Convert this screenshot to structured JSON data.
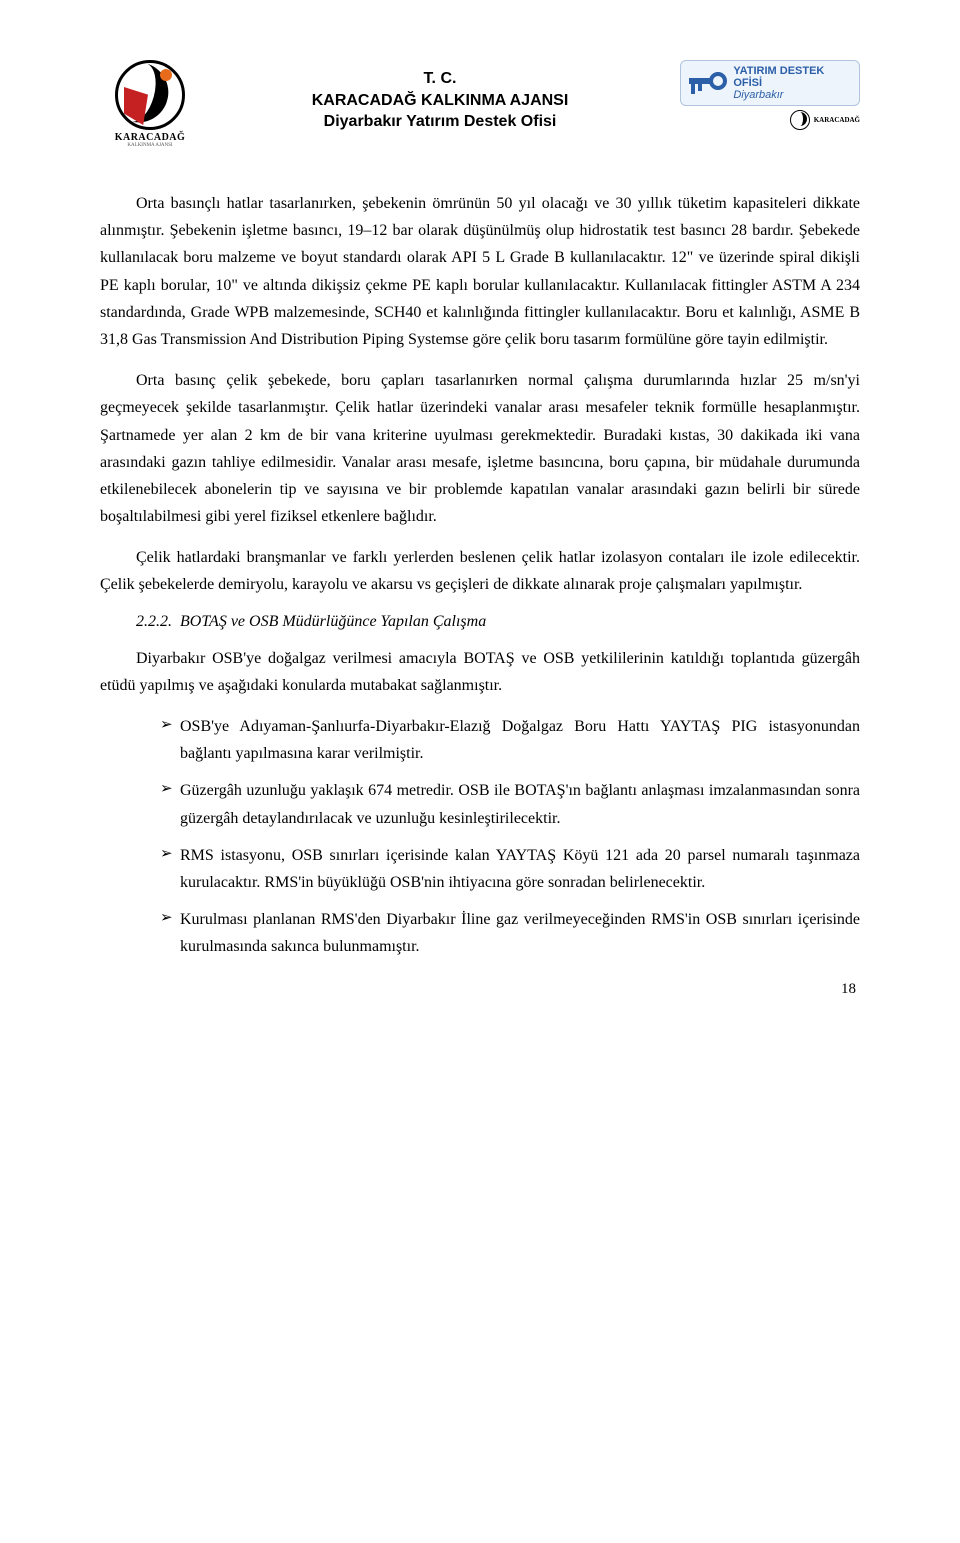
{
  "header": {
    "logo_left_label": "KARACADAĞ",
    "logo_left_sublabel": "KALKINMA AJANSI",
    "line1": "T. C.",
    "line2": "KARACADAĞ KALKINMA AJANSI",
    "line3": "Diyarbakır Yatırım Destek Ofisi",
    "logo_right_line1": "YATIRIM DESTEK OFİSİ",
    "logo_right_line2": "Diyarbakır",
    "logo_right_mini": "KARACADAĞ"
  },
  "body": {
    "p1": "Orta basınçlı hatlar tasarlanırken, şebekenin ömrünün 50 yıl olacağı ve 30 yıllık tüketim kapasiteleri dikkate alınmıştır. Şebekenin işletme basıncı, 19–12 bar olarak düşünülmüş olup hidrostatik test basıncı 28 bardır. Şebekede kullanılacak boru malzeme ve boyut standardı olarak API 5 L Grade B kullanılacaktır. 12\" ve üzerinde spiral dikişli PE kaplı borular, 10\" ve altında dikişsiz çekme PE kaplı borular kullanılacaktır. Kullanılacak fittingler ASTM A 234 standardında, Grade WPB malzemesinde, SCH40 et kalınlığında fittingler kullanılacaktır. Boru et kalınlığı, ASME B 31,8 Gas Transmission And Distribution Piping Systemse göre çelik boru tasarım formülüne göre tayin edilmiştir.",
    "p2": "Orta basınç çelik şebekede, boru çapları tasarlanırken normal çalışma durumlarında hızlar 25 m/sn'yi geçmeyecek şekilde tasarlanmıştır. Çelik hatlar üzerindeki vanalar arası mesafeler teknik formülle hesaplanmıştır. Şartnamede yer alan 2 km de bir vana kriterine uyulması gerekmektedir. Buradaki kıstas, 30 dakikada iki vana arasındaki gazın tahliye edilmesidir. Vanalar arası mesafe, işletme basıncına, boru çapına, bir müdahale durumunda etkilenebilecek abonelerin tip ve sayısına ve bir problemde kapatılan vanalar arasındaki gazın belirli bir sürede boşaltılabilmesi gibi yerel fiziksel etkenlere bağlıdır.",
    "p3": "Çelik hatlardaki branşmanlar ve farklı yerlerden beslenen çelik hatlar izolasyon contaları ile izole edilecektir. Çelik şebekelerde demiryolu, karayolu ve akarsu vs geçişleri de dikkate alınarak proje çalışmaları yapılmıştır.",
    "section_number": "2.2.2.",
    "section_title": "BOTAŞ ve OSB Müdürlüğünce Yapılan Çalışma",
    "p4": "Diyarbakır OSB'ye doğalgaz verilmesi amacıyla BOTAŞ ve OSB yetkililerinin katıldığı toplantıda güzergâh etüdü yapılmış ve aşağıdaki konularda mutabakat sağlanmıştır.",
    "bullets": [
      "OSB'ye Adıyaman-Şanlıurfa-Diyarbakır-Elazığ Doğalgaz Boru Hattı YAYTAŞ PIG istasyonundan bağlantı yapılmasına karar verilmiştir.",
      "Güzergâh uzunluğu yaklaşık 674 metredir. OSB ile BOTAŞ'ın bağlantı anlaşması imzalanmasından sonra güzergâh detaylandırılacak ve uzunluğu kesinleştirilecektir.",
      "RMS istasyonu, OSB sınırları içerisinde kalan YAYTAŞ Köyü 121 ada 20 parsel numaralı taşınmaza kurulacaktır. RMS'in büyüklüğü OSB'nin ihtiyacına göre sonradan belirlenecektir.",
      "Kurulması planlanan RMS'den Diyarbakır İline gaz verilmeyeceğinden RMS'in OSB sınırları içerisinde kurulmasında sakınca bulunmamıştır."
    ]
  },
  "page_number": "18"
}
